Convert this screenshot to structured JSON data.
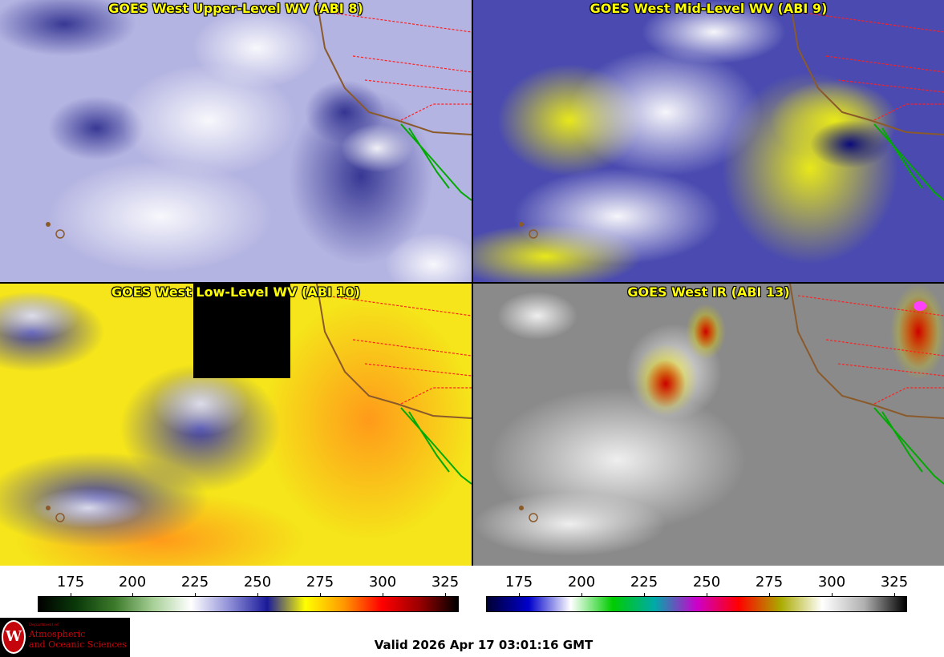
{
  "panels": [
    {
      "id": "wv-upper",
      "title": "GOES West Upper-Level WV (ABI 8)"
    },
    {
      "id": "wv-mid",
      "title": "GOES West Mid-Level WV (ABI 9)"
    },
    {
      "id": "wv-low",
      "title": "GOES West Low-Level WV (ABI 10)"
    },
    {
      "id": "ir",
      "title": "GOES West IR (ABI 13)"
    }
  ],
  "wv_scale": {
    "ticks": [
      "175",
      "200",
      "225",
      "250",
      "275",
      "300",
      "325"
    ],
    "colors": [
      "#000000",
      "#0a3a0a",
      "#3c7a2a",
      "#a6cf96",
      "#ffffff",
      "#9090d8",
      "#1a1a9a",
      "#ffff00",
      "#ff9900",
      "#ff0000",
      "#990000",
      "#000000"
    ]
  },
  "ir_scale": {
    "ticks": [
      "175",
      "200",
      "225",
      "250",
      "275",
      "300",
      "325"
    ],
    "colors": [
      "#000033",
      "#0000cc",
      "#ffffff",
      "#00cc00",
      "#00aaaa",
      "#cc00cc",
      "#ff0000",
      "#aaaa00",
      "#ffffff",
      "#b0b0b0",
      "#000000"
    ]
  },
  "logo": {
    "small": "Department of",
    "line1": "Atmospheric",
    "line2": "and Oceanic Sciences",
    "seal": "W"
  },
  "valid_time": "Valid 2026 Apr 17 03:01:16 GMT"
}
